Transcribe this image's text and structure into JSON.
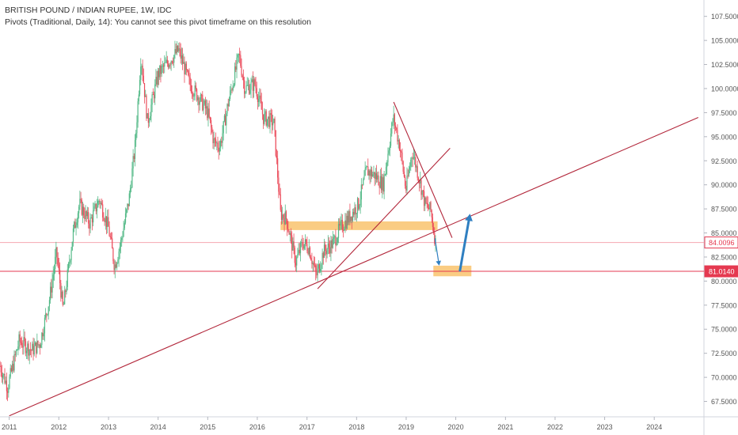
{
  "header": {
    "title": "BRITISH POUND / INDIAN RUPEE, 1W, IDC",
    "indicator": "Pivots (Traditional, Daily, 14): You cannot see this pivot timeframe on this resolution"
  },
  "colors": {
    "up": "#53b987",
    "down": "#eb4d5c",
    "trendline": "#b2263a",
    "zone": "#f7b040",
    "arrow": "#2f7fc1",
    "h_line": "#e53950",
    "h_line_light": "#f4a7b0",
    "axis_text": "#555555",
    "grid": "#e0e3eb"
  },
  "chart_data": {
    "type": "candlestick",
    "x_axis": {
      "type": "date",
      "range": [
        "2010-10-25",
        "2025-01-01"
      ],
      "tick_labels": [
        "2011",
        "2012",
        "2013",
        "2014",
        "2015",
        "2016",
        "2017",
        "2018",
        "2019",
        "2020",
        "2021",
        "2022",
        "2023",
        "2024"
      ]
    },
    "y_axis": {
      "position": "right",
      "range": [
        65.9,
        109.2
      ],
      "tick_labels": [
        "107.5000",
        "105.0000",
        "102.5000",
        "100.0000",
        "97.5000",
        "95.0000",
        "92.5000",
        "90.0000",
        "87.5000",
        "85.0000",
        "82.5000",
        "80.0000",
        "77.5000",
        "75.0000",
        "72.5000",
        "70.0000",
        "67.5000"
      ]
    },
    "price_tags": [
      {
        "label": "84.0096",
        "value": 84.0096,
        "style": "light"
      },
      {
        "label": "81.0140",
        "value": 81.014,
        "style": "solid"
      }
    ],
    "trendlines": [
      {
        "from": [
          "2011-01-01",
          66.0
        ],
        "to": [
          "2024-11-20",
          97.0
        ]
      },
      {
        "from": [
          "2017-03-20",
          79.2
        ],
        "to": [
          "2019-11-20",
          93.8
        ]
      },
      {
        "from": [
          "2018-10-01",
          98.6
        ],
        "to": [
          "2019-12-05",
          84.5
        ]
      }
    ],
    "zones": [
      {
        "from": "2016-06-20",
        "to": "2019-08-20",
        "low": 85.3,
        "high": 86.2
      },
      {
        "from": "2019-07-20",
        "to": "2020-04-25",
        "low": 80.5,
        "high": 81.6
      }
    ],
    "arrows": [
      {
        "from": [
          "2019-08-01",
          84.4
        ],
        "to": [
          "2019-09-01",
          81.6
        ],
        "weight": "thin"
      },
      {
        "from": [
          "2020-02-01",
          81.1
        ],
        "to": [
          "2020-04-15",
          87.0
        ],
        "weight": "thick"
      }
    ],
    "price_path": [
      [
        "2010-10-25",
        71.2
      ],
      [
        "2010-12-20",
        69.0
      ],
      [
        "2011-03-15",
        73.8
      ],
      [
        "2011-06-15",
        72.8
      ],
      [
        "2011-08-15",
        73.5
      ],
      [
        "2011-10-25",
        78.2
      ],
      [
        "2011-12-15",
        83.0
      ],
      [
        "2012-02-01",
        77.0
      ],
      [
        "2012-04-15",
        85.0
      ],
      [
        "2012-06-01",
        88.0
      ],
      [
        "2012-08-15",
        86.0
      ],
      [
        "2012-10-25",
        88.5
      ],
      [
        "2013-01-01",
        85.5
      ],
      [
        "2013-02-15",
        81.5
      ],
      [
        "2013-04-01",
        84.0
      ],
      [
        "2013-06-01",
        88.5
      ],
      [
        "2013-07-15",
        94.0
      ],
      [
        "2013-08-28",
        103.5
      ],
      [
        "2013-10-15",
        96.5
      ],
      [
        "2014-01-01",
        101.5
      ],
      [
        "2014-03-01",
        102.5
      ],
      [
        "2014-06-01",
        104.0
      ],
      [
        "2014-08-20",
        100.5
      ],
      [
        "2014-11-01",
        99.0
      ],
      [
        "2015-01-01",
        97.5
      ],
      [
        "2015-02-15",
        94.5
      ],
      [
        "2015-04-01",
        94.0
      ],
      [
        "2015-06-01",
        98.5
      ],
      [
        "2015-08-20",
        103.5
      ],
      [
        "2015-10-01",
        100.0
      ],
      [
        "2015-12-15",
        100.5
      ],
      [
        "2016-02-15",
        97.0
      ],
      [
        "2016-05-01",
        96.5
      ],
      [
        "2016-06-20",
        87.0
      ],
      [
        "2016-08-01",
        86.5
      ],
      [
        "2016-10-10",
        82.0
      ],
      [
        "2016-12-01",
        84.0
      ],
      [
        "2017-01-15",
        83.5
      ],
      [
        "2017-03-10",
        80.5
      ],
      [
        "2017-05-01",
        83.0
      ],
      [
        "2017-07-15",
        84.0
      ],
      [
        "2017-09-01",
        85.5
      ],
      [
        "2017-11-01",
        86.5
      ],
      [
        "2018-01-15",
        88.0
      ],
      [
        "2018-03-15",
        91.5
      ],
      [
        "2018-05-15",
        91.0
      ],
      [
        "2018-07-15",
        90.0
      ],
      [
        "2018-09-28",
        97.0
      ],
      [
        "2018-11-15",
        94.0
      ],
      [
        "2018-12-30",
        89.5
      ],
      [
        "2019-02-15",
        93.5
      ],
      [
        "2019-04-01",
        91.0
      ],
      [
        "2019-05-20",
        88.0
      ],
      [
        "2019-07-01",
        87.3
      ],
      [
        "2019-08-05",
        84.0
      ]
    ]
  }
}
